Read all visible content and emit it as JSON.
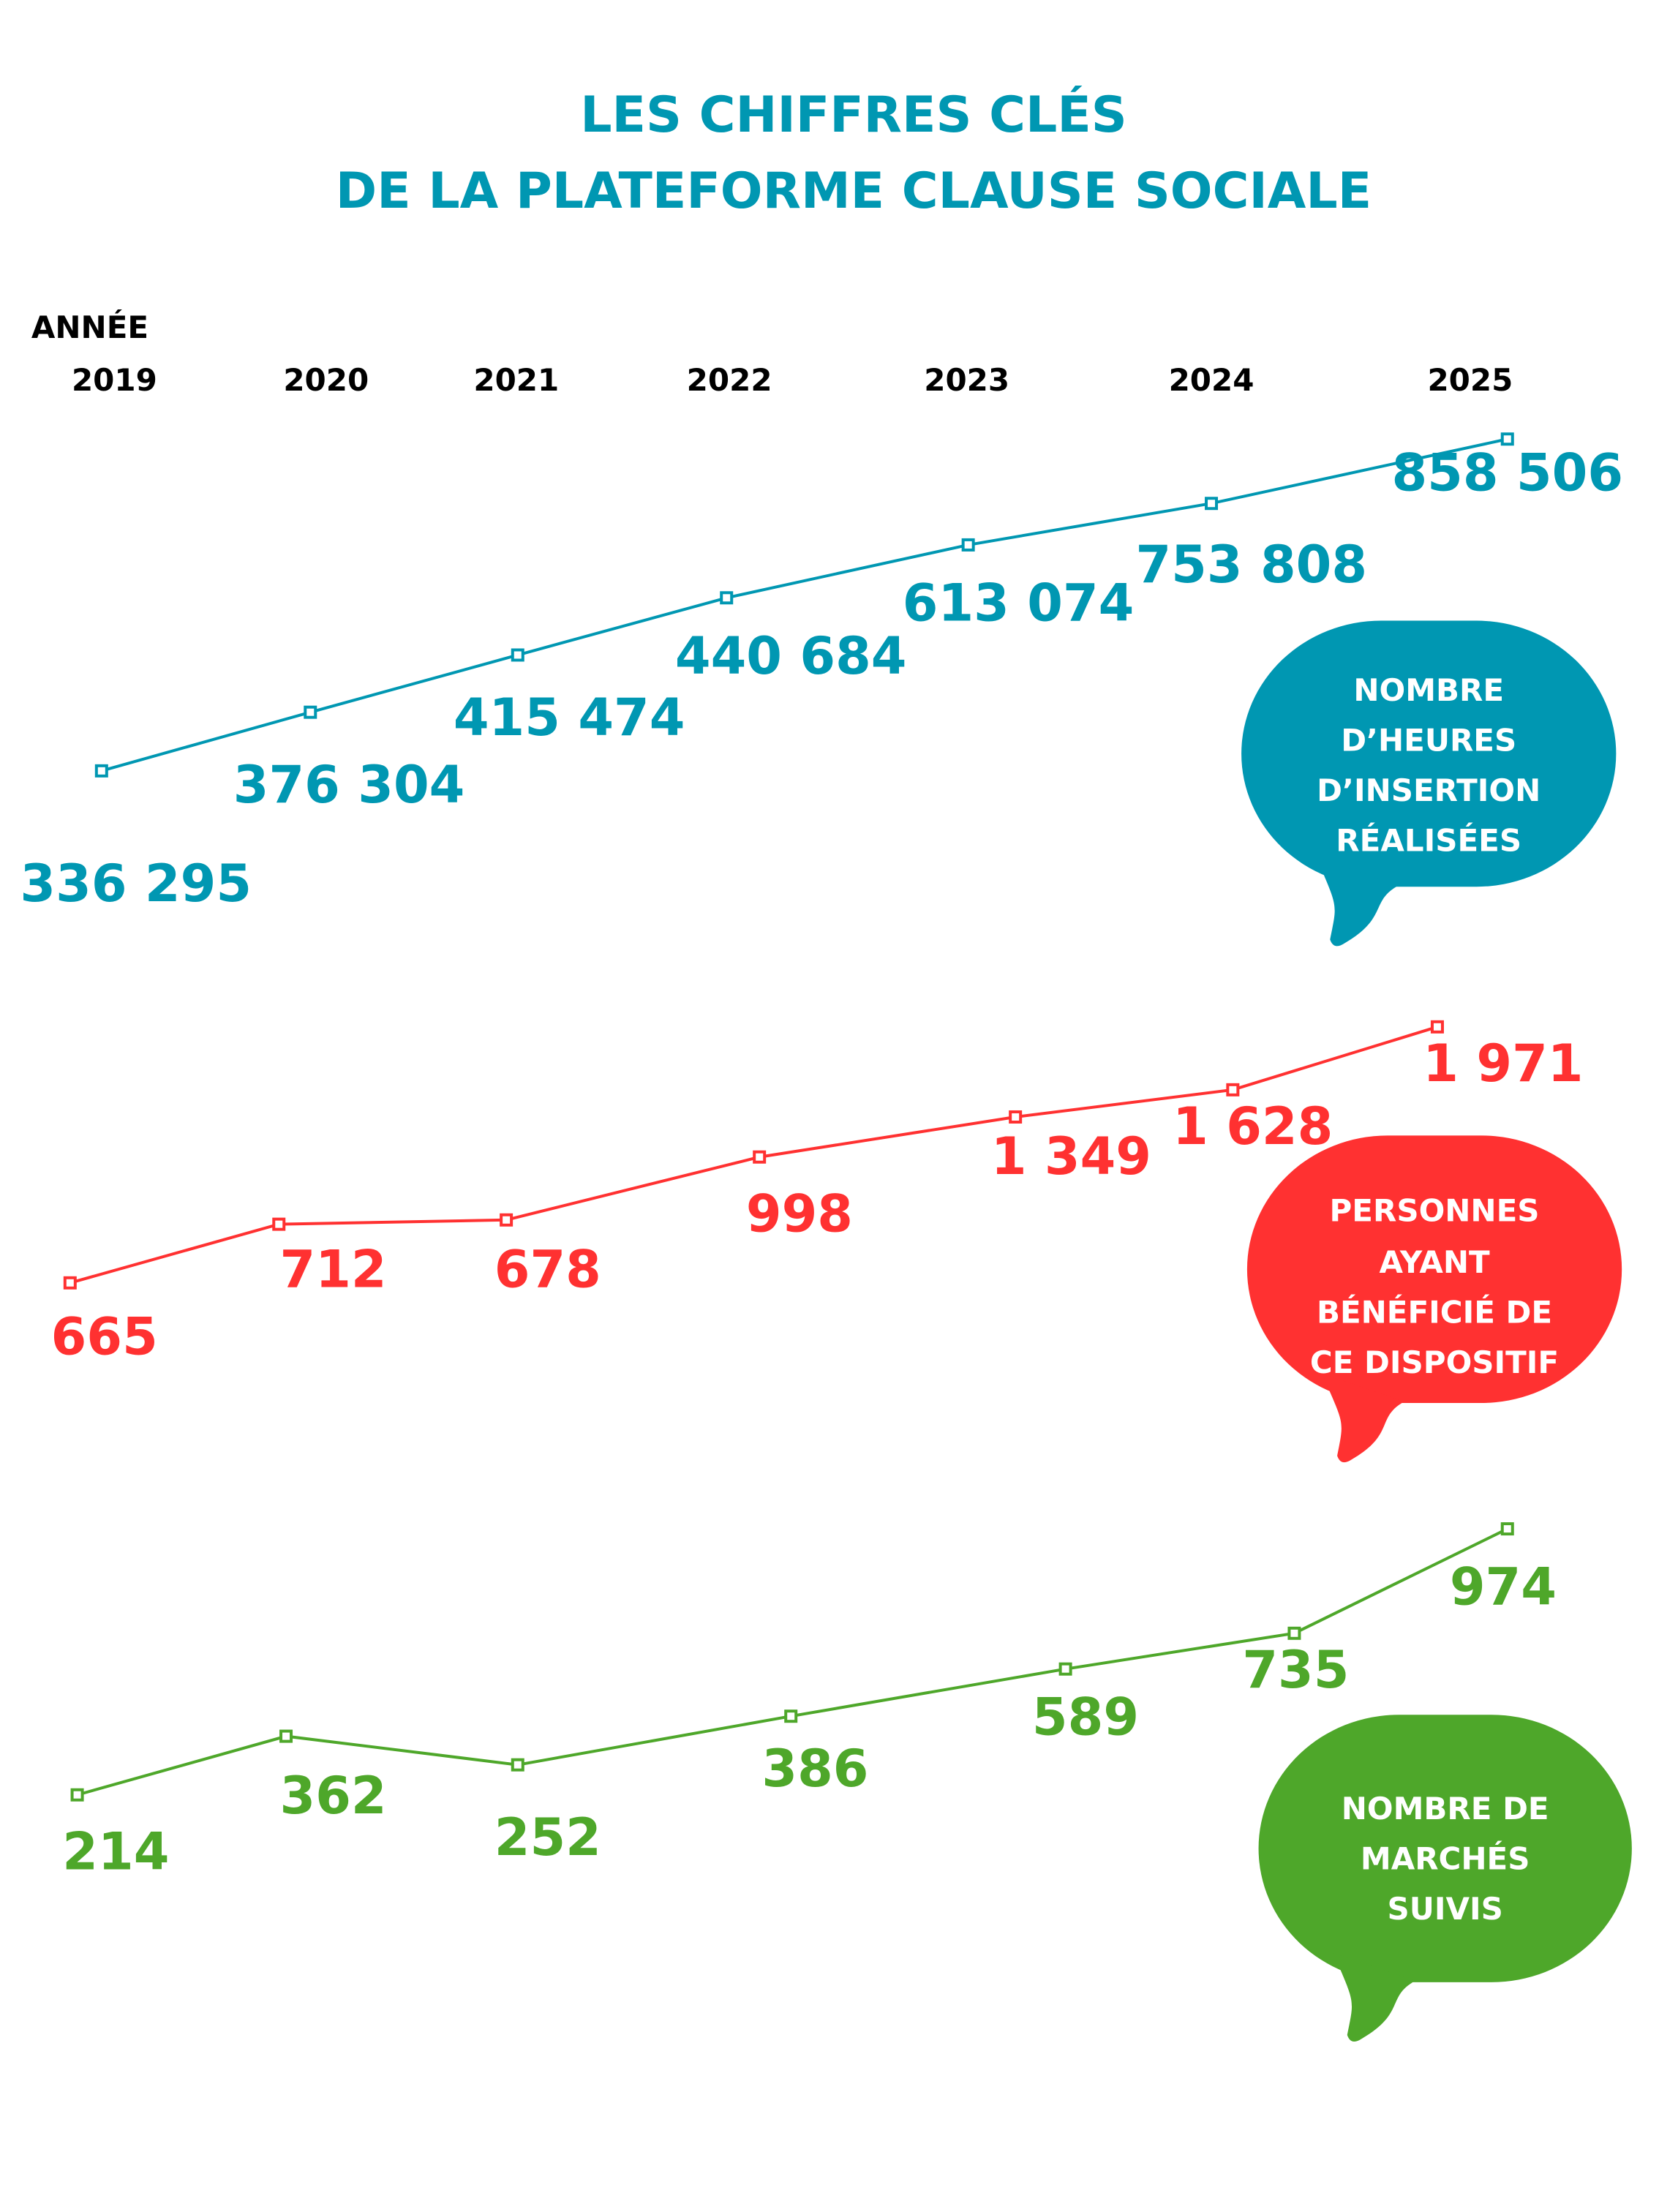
{
  "title": {
    "line1": "LES CHIFFRES CLÉS",
    "line2": "DE LA PLATEFORME CLAUSE SOCIALE",
    "color": "#0097b2"
  },
  "chart_data": {
    "type": "line",
    "xlabel": "ANNÉE",
    "categories": [
      "2019",
      "2020",
      "2021",
      "2022",
      "2023",
      "2024",
      "2025"
    ],
    "series": [
      {
        "name": "NOMBRE D’HEURES D’INSERTION RÉALISÉES",
        "name_lines": [
          "NOMBRE",
          "D’HEURES",
          "D’INSERTION",
          "RÉALISÉES"
        ],
        "color": "#0097b2",
        "values": [
          336295,
          376304,
          415474,
          440684,
          613074,
          753808,
          858506
        ],
        "labels": [
          "336 295",
          "376 304",
          "415 474",
          "440 684",
          "613 074",
          "753 808",
          "858 506"
        ]
      },
      {
        "name": "PERSONNES AYANT BÉNÉFICIÉ DE CE DISPOSITIF",
        "name_lines": [
          "PERSONNES",
          "AYANT",
          "BÉNÉFICIÉ DE",
          "CE DISPOSITIF"
        ],
        "color": "#ff3131",
        "values": [
          665,
          712,
          678,
          998,
          1349,
          1628,
          1971
        ],
        "labels": [
          "665",
          "712",
          "678",
          "998",
          "1 349",
          "1 628",
          "1 971"
        ]
      },
      {
        "name": "NOMBRE DE MARCHÉS SUIVIS",
        "name_lines": [
          "NOMBRE DE",
          "MARCHÉS",
          "SUIVIS"
        ],
        "color": "#4ea72a",
        "values": [
          214,
          362,
          252,
          386,
          589,
          735,
          974
        ],
        "labels": [
          "214",
          "362",
          "252",
          "386",
          "589",
          "735",
          "974"
        ]
      }
    ]
  }
}
